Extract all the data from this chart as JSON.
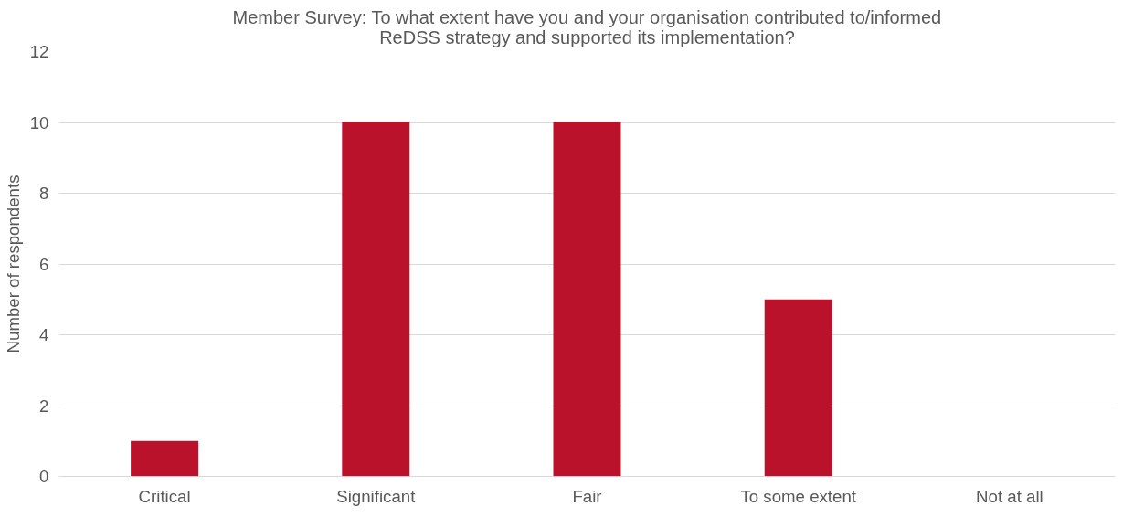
{
  "chart_data": {
    "type": "bar",
    "title": "Member Survey: To what extent have you and your organisation contributed to/informed ReDSS strategy and supported its implementation?",
    "ylabel": "Number of respondents",
    "categories": [
      "Critical",
      "Significant",
      "Fair",
      "To some extent",
      "Not at all"
    ],
    "values": [
      1,
      10,
      10,
      5,
      0
    ],
    "color": "#ba122b",
    "ylim": [
      0,
      12
    ],
    "yticks": [
      0,
      2,
      4,
      6,
      8,
      10,
      12
    ],
    "grid": "y"
  }
}
